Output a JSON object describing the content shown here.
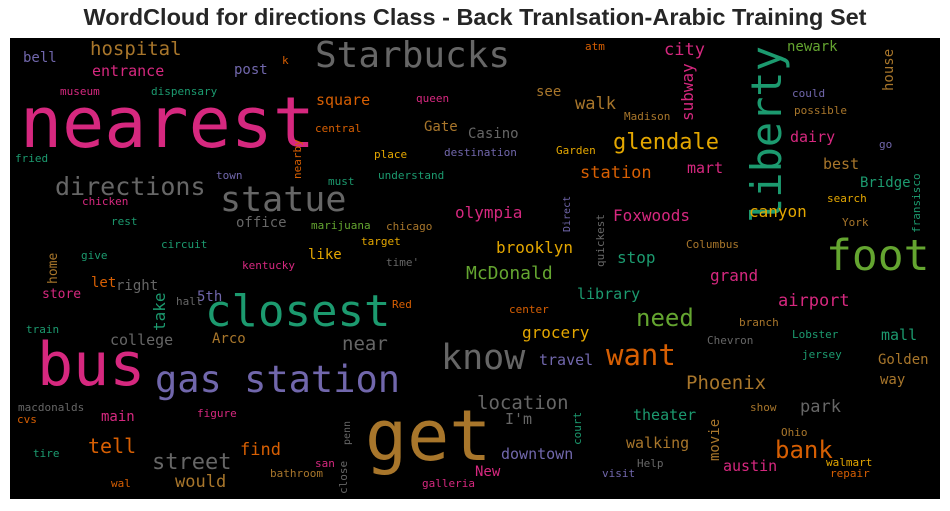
{
  "chart_data": {
    "type": "wordcloud",
    "title": "WordCloud for directions Class - Back Tranlsation-Arabic Training Set",
    "background": "#000000",
    "words": [
      {
        "text": "nearest",
        "color": "#d6287f"
      },
      {
        "text": "get",
        "color": "#a8762b"
      },
      {
        "text": "bus",
        "color": "#d6287f"
      },
      {
        "text": "closest",
        "color": "#1c9a6f"
      },
      {
        "text": "gas station",
        "color": "#7167ac"
      },
      {
        "text": "foot",
        "color": "#64a530"
      },
      {
        "text": "Starbucks",
        "color": "#666666"
      },
      {
        "text": "liberty",
        "color": "#1c9a6f"
      },
      {
        "text": "know",
        "color": "#666666"
      },
      {
        "text": "statue",
        "color": "#666666"
      },
      {
        "text": "directions",
        "color": "#666666"
      },
      {
        "text": "want",
        "color": "#d75f03"
      },
      {
        "text": "need",
        "color": "#64a530"
      },
      {
        "text": "bank",
        "color": "#d75f03"
      },
      {
        "text": "street",
        "color": "#666666"
      },
      {
        "text": "glendale",
        "color": "#e4a700"
      },
      {
        "text": "near",
        "color": "#666666"
      },
      {
        "text": "Phoenix",
        "color": "#a8762b"
      },
      {
        "text": "location",
        "color": "#666666"
      },
      {
        "text": "hospital",
        "color": "#a8762b"
      },
      {
        "text": "airport",
        "color": "#d6287f"
      },
      {
        "text": "McDonald",
        "color": "#64a530"
      },
      {
        "text": "station",
        "color": "#d75f03"
      },
      {
        "text": "tell",
        "color": "#d75f03"
      },
      {
        "text": "walk",
        "color": "#a8762b"
      },
      {
        "text": "city",
        "color": "#d6287f"
      },
      {
        "text": "olympia",
        "color": "#d6287f"
      },
      {
        "text": "brooklyn",
        "color": "#e4a700"
      },
      {
        "text": "Foxwoods",
        "color": "#d6287f"
      },
      {
        "text": "canyon",
        "color": "#e4a700"
      },
      {
        "text": "stop",
        "color": "#1c9a6f"
      },
      {
        "text": "grocery",
        "color": "#e4a700"
      },
      {
        "text": "library",
        "color": "#1c9a6f"
      },
      {
        "text": "grand",
        "color": "#d6287f"
      },
      {
        "text": "park",
        "color": "#666666"
      },
      {
        "text": "austin",
        "color": "#d6287f"
      },
      {
        "text": "theater",
        "color": "#1c9a6f"
      },
      {
        "text": "walking",
        "color": "#a8762b"
      },
      {
        "text": "downtown",
        "color": "#7167ac"
      },
      {
        "text": "would",
        "color": "#a8762b"
      },
      {
        "text": "find",
        "color": "#d75f03"
      },
      {
        "text": "entrance",
        "color": "#d6287f"
      },
      {
        "text": "subway",
        "color": "#d6287f"
      },
      {
        "text": "newark",
        "color": "#64a530"
      },
      {
        "text": "square",
        "color": "#d75f03"
      },
      {
        "text": "Gate",
        "color": "#a8762b"
      },
      {
        "text": "Casino",
        "color": "#666666"
      },
      {
        "text": "mart",
        "color": "#d6287f"
      },
      {
        "text": "dairy",
        "color": "#d6287f"
      },
      {
        "text": "best",
        "color": "#a8762b"
      },
      {
        "text": "Bridge",
        "color": "#1c9a6f"
      },
      {
        "text": "office",
        "color": "#666666"
      },
      {
        "text": "mall",
        "color": "#1c9a6f"
      },
      {
        "text": "Golden",
        "color": "#a8762b"
      },
      {
        "text": "way",
        "color": "#a8762b"
      },
      {
        "text": "travel",
        "color": "#7167ac"
      },
      {
        "text": "I'm",
        "color": "#666666"
      },
      {
        "text": "main",
        "color": "#d6287f"
      },
      {
        "text": "college",
        "color": "#666666"
      },
      {
        "text": "Arco",
        "color": "#a8762b"
      },
      {
        "text": "store",
        "color": "#d6287f"
      },
      {
        "text": "let",
        "color": "#d75f03"
      },
      {
        "text": "right",
        "color": "#666666"
      },
      {
        "text": "5th",
        "color": "#7167ac"
      },
      {
        "text": "like",
        "color": "#e4a700"
      },
      {
        "text": "take",
        "color": "#1c9a6f"
      },
      {
        "text": "movie",
        "color": "#a8762b"
      },
      {
        "text": "see",
        "color": "#a8762b"
      },
      {
        "text": "post",
        "color": "#7167ac"
      },
      {
        "text": "bell",
        "color": "#7167ac"
      },
      {
        "text": "house",
        "color": "#a8762b"
      },
      {
        "text": "home",
        "color": "#a8762b"
      },
      {
        "text": "museum",
        "color": "#d6287f"
      },
      {
        "text": "dispensary",
        "color": "#1c9a6f"
      },
      {
        "text": "queen",
        "color": "#d6287f"
      },
      {
        "text": "Madison",
        "color": "#a8762b"
      },
      {
        "text": "could",
        "color": "#7167ac"
      },
      {
        "text": "possible",
        "color": "#a8762b"
      },
      {
        "text": "central",
        "color": "#d75f03"
      },
      {
        "text": "go",
        "color": "#7167ac"
      },
      {
        "text": "fried",
        "color": "#1c9a6f"
      },
      {
        "text": "nearby",
        "color": "#d75f03"
      },
      {
        "text": "place",
        "color": "#e4a700"
      },
      {
        "text": "destination",
        "color": "#7167ac"
      },
      {
        "text": "Garden",
        "color": "#e4a700"
      },
      {
        "text": "town",
        "color": "#7167ac"
      },
      {
        "text": "must",
        "color": "#1c9a6f"
      },
      {
        "text": "understand",
        "color": "#1c9a6f"
      },
      {
        "text": "chicken",
        "color": "#d6287f"
      },
      {
        "text": "rest",
        "color": "#1c9a6f"
      },
      {
        "text": "marijuana",
        "color": "#64a530"
      },
      {
        "text": "chicago",
        "color": "#a8762b"
      },
      {
        "text": "Direct",
        "color": "#7167ac"
      },
      {
        "text": "quickest",
        "color": "#666666"
      },
      {
        "text": "search",
        "color": "#e4a700"
      },
      {
        "text": "York",
        "color": "#a8762b"
      },
      {
        "text": "fransisco",
        "color": "#1c9a6f"
      },
      {
        "text": "circuit",
        "color": "#1c9a6f"
      },
      {
        "text": "give",
        "color": "#1c9a6f"
      },
      {
        "text": "target",
        "color": "#e4a700"
      },
      {
        "text": "time'",
        "color": "#666666"
      },
      {
        "text": "Columbus",
        "color": "#a8762b"
      },
      {
        "text": "kentucky",
        "color": "#d6287f"
      },
      {
        "text": "hall",
        "color": "#666666"
      },
      {
        "text": "Red",
        "color": "#d75f03"
      },
      {
        "text": "center",
        "color": "#d75f03"
      },
      {
        "text": "branch",
        "color": "#a8762b"
      },
      {
        "text": "Lobster",
        "color": "#1c9a6f"
      },
      {
        "text": "train",
        "color": "#1c9a6f"
      },
      {
        "text": "Chevron",
        "color": "#666666"
      },
      {
        "text": "jersey",
        "color": "#1c9a6f"
      },
      {
        "text": "macdonalds",
        "color": "#666666"
      },
      {
        "text": "cvs",
        "color": "#d75f03"
      },
      {
        "text": "figure",
        "color": "#d6287f"
      },
      {
        "text": "penn",
        "color": "#666666"
      },
      {
        "text": "court",
        "color": "#1c9a6f"
      },
      {
        "text": "show",
        "color": "#a8762b"
      },
      {
        "text": "Ohio",
        "color": "#a8762b"
      },
      {
        "text": "walmart",
        "color": "#e4a700"
      },
      {
        "text": "tire",
        "color": "#1c9a6f"
      },
      {
        "text": "bathroom",
        "color": "#a8762b"
      },
      {
        "text": "san",
        "color": "#d6287f"
      },
      {
        "text": "close",
        "color": "#666666"
      },
      {
        "text": "New",
        "color": "#d6287f"
      },
      {
        "text": "Help",
        "color": "#666666"
      },
      {
        "text": "visit",
        "color": "#7167ac"
      },
      {
        "text": "repair",
        "color": "#d75f03"
      },
      {
        "text": "wal",
        "color": "#d75f03"
      },
      {
        "text": "galleria",
        "color": "#d6287f"
      },
      {
        "text": "atm",
        "color": "#d75f03"
      },
      {
        "text": "k",
        "color": "#d75f03"
      }
    ]
  }
}
